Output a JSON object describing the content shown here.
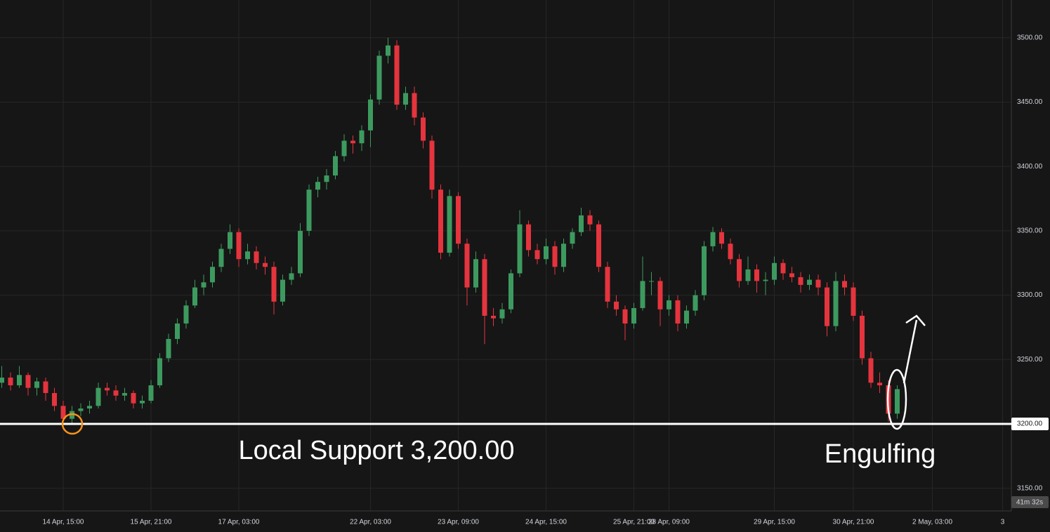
{
  "chart_data": {
    "type": "candlestick",
    "categories": [
      null,
      null,
      null,
      null,
      null,
      null,
      null,
      "14 Apr, 15:00",
      null,
      null,
      null,
      null,
      null,
      null,
      null,
      null,
      null,
      "15 Apr, 21:00",
      null,
      null,
      null,
      null,
      null,
      null,
      null,
      null,
      null,
      "17 Apr, 03:00",
      null,
      null,
      null,
      null,
      null,
      null,
      null,
      null,
      null,
      null,
      null,
      null,
      null,
      null,
      "22 Apr, 03:00",
      null,
      null,
      null,
      null,
      null,
      null,
      null,
      null,
      null,
      "23 Apr, 09:00",
      null,
      null,
      null,
      null,
      null,
      null,
      null,
      null,
      null,
      "24 Apr, 15:00",
      null,
      null,
      null,
      null,
      null,
      null,
      null,
      null,
      null,
      "25 Apr, 21:00",
      null,
      null,
      null,
      "28 Apr, 09:00",
      null,
      null,
      null,
      null,
      null,
      null,
      null,
      null,
      null,
      null,
      null,
      "29 Apr, 15:00",
      null,
      null,
      null,
      null,
      null,
      null,
      null,
      null,
      "30 Apr, 21:00",
      null,
      null,
      null,
      null,
      null,
      null,
      null,
      null,
      "2 May, 03:00",
      null,
      null,
      null,
      null,
      null,
      null,
      null,
      "3"
    ],
    "open": [
      3232,
      3236,
      3230,
      3238,
      3228,
      3233,
      3224,
      3214,
      3204,
      3210,
      3212,
      3214,
      3228,
      3226,
      3222,
      3224,
      3216,
      3218,
      3230,
      3251,
      3266,
      3278,
      3292,
      3306,
      3310,
      3322,
      3336,
      3349,
      3328,
      3334,
      3325,
      3322,
      3295,
      3312,
      3317,
      3350,
      3382,
      3388,
      3393,
      3408,
      3420,
      3418,
      3428,
      3452,
      3486,
      3494,
      3448,
      3457,
      3438,
      3420,
      3382,
      3333,
      3377,
      3340,
      3306,
      3328,
      3284,
      3282,
      3289,
      3317,
      3355,
      3335,
      3328,
      3338,
      3322,
      3340,
      3349,
      3362,
      3355,
      3322,
      3295,
      3289,
      3278,
      3290,
      3311,
      3311,
      3289,
      3296,
      3278,
      3288,
      3300,
      3338,
      3349,
      3340,
      3328,
      3311,
      3320,
      3311,
      3312,
      3325,
      3317,
      3314,
      3308,
      3312,
      3306,
      3276,
      3311,
      3306,
      3284,
      3251,
      3232,
      3230,
      3208,
      null,
      null,
      null,
      null,
      null,
      null,
      null,
      null,
      null,
      null,
      null,
      null
    ],
    "high": [
      3245,
      3240,
      3245,
      3240,
      3236,
      3236,
      3228,
      3218,
      3214,
      3216,
      3218,
      3232,
      3232,
      3230,
      3228,
      3226,
      3222,
      3234,
      3255,
      3270,
      3282,
      3296,
      3312,
      3316,
      3326,
      3340,
      3355,
      3352,
      3340,
      3338,
      3330,
      3326,
      3316,
      3322,
      3356,
      3386,
      3392,
      3398,
      3412,
      3425,
      3424,
      3432,
      3456,
      3490,
      3500,
      3498,
      3462,
      3462,
      3442,
      3424,
      3386,
      3382,
      3380,
      3344,
      3334,
      3332,
      3290,
      3294,
      3320,
      3366,
      3358,
      3340,
      3344,
      3342,
      3344,
      3352,
      3368,
      3366,
      3358,
      3326,
      3300,
      3292,
      3294,
      3330,
      3318,
      3314,
      3300,
      3300,
      3292,
      3304,
      3342,
      3353,
      3352,
      3344,
      3332,
      3330,
      3324,
      3318,
      3330,
      3328,
      3322,
      3318,
      3316,
      3316,
      3310,
      3318,
      3316,
      3310,
      3288,
      3256,
      3240,
      3234,
      3230,
      null,
      null,
      null,
      null,
      null,
      null,
      null,
      null,
      null,
      null,
      null,
      null
    ],
    "low": [
      3228,
      3226,
      3228,
      3222,
      3222,
      3218,
      3210,
      3200,
      3200,
      3206,
      3208,
      3212,
      3222,
      3218,
      3218,
      3212,
      3212,
      3216,
      3228,
      3248,
      3262,
      3274,
      3290,
      3300,
      3306,
      3318,
      3332,
      3322,
      3324,
      3320,
      3316,
      3285,
      3292,
      3308,
      3314,
      3346,
      3376,
      3382,
      3390,
      3404,
      3410,
      3412,
      3415,
      3448,
      3480,
      3444,
      3444,
      3432,
      3414,
      3375,
      3328,
      3330,
      3336,
      3292,
      3302,
      3262,
      3276,
      3278,
      3286,
      3314,
      3330,
      3324,
      3324,
      3316,
      3318,
      3336,
      3346,
      3350,
      3318,
      3290,
      3284,
      3265,
      3274,
      3288,
      3300,
      3276,
      3284,
      3272,
      3274,
      3284,
      3296,
      3334,
      3336,
      3324,
      3306,
      3308,
      3302,
      3300,
      3308,
      3312,
      3310,
      3302,
      3304,
      3300,
      3268,
      3272,
      3300,
      3280,
      3246,
      3228,
      3224,
      3202,
      3204,
      null,
      null,
      null,
      null,
      null,
      null,
      null,
      null,
      null,
      null,
      null,
      null
    ],
    "close": [
      3236,
      3230,
      3238,
      3228,
      3233,
      3224,
      3214,
      3204,
      3210,
      3212,
      3214,
      3228,
      3226,
      3222,
      3224,
      3216,
      3218,
      3230,
      3251,
      3266,
      3278,
      3292,
      3306,
      3310,
      3322,
      3336,
      3349,
      3328,
      3334,
      3325,
      3322,
      3295,
      3312,
      3317,
      3350,
      3382,
      3388,
      3393,
      3408,
      3420,
      3418,
      3428,
      3452,
      3486,
      3494,
      3448,
      3457,
      3438,
      3420,
      3382,
      3333,
      3377,
      3340,
      3306,
      3328,
      3284,
      3282,
      3289,
      3317,
      3355,
      3335,
      3328,
      3338,
      3322,
      3340,
      3349,
      3362,
      3355,
      3322,
      3295,
      3289,
      3278,
      3290,
      3311,
      3311,
      3289,
      3296,
      3278,
      3288,
      3300,
      3338,
      3349,
      3340,
      3328,
      3311,
      3320,
      3311,
      3312,
      3325,
      3317,
      3314,
      3308,
      3312,
      3306,
      3276,
      3311,
      3306,
      3284,
      3251,
      3232,
      3230,
      3208,
      3227,
      null,
      null,
      null,
      null,
      null,
      null,
      null,
      null,
      null,
      null,
      null,
      null
    ],
    "up_color": "#3d9a5f",
    "down_color": "#e5343d",
    "ylim": [
      3132.4,
      3529.3
    ],
    "yticks": [
      {
        "value": 3150,
        "label": "3150.00"
      },
      {
        "value": 3250,
        "label": "3250.00"
      },
      {
        "value": 3300,
        "label": "3300.00"
      },
      {
        "value": 3350,
        "label": "3350.00"
      },
      {
        "value": 3400,
        "label": "3400.00"
      },
      {
        "value": 3450,
        "label": "3450.00"
      },
      {
        "value": 3500,
        "label": "3500.00"
      }
    ],
    "grid": true,
    "support_line": {
      "value": 3200,
      "label": "3200.00"
    },
    "annotations": [
      "Local Support 3,200.00",
      "Engulfing"
    ],
    "countdown": "41m 32s"
  }
}
